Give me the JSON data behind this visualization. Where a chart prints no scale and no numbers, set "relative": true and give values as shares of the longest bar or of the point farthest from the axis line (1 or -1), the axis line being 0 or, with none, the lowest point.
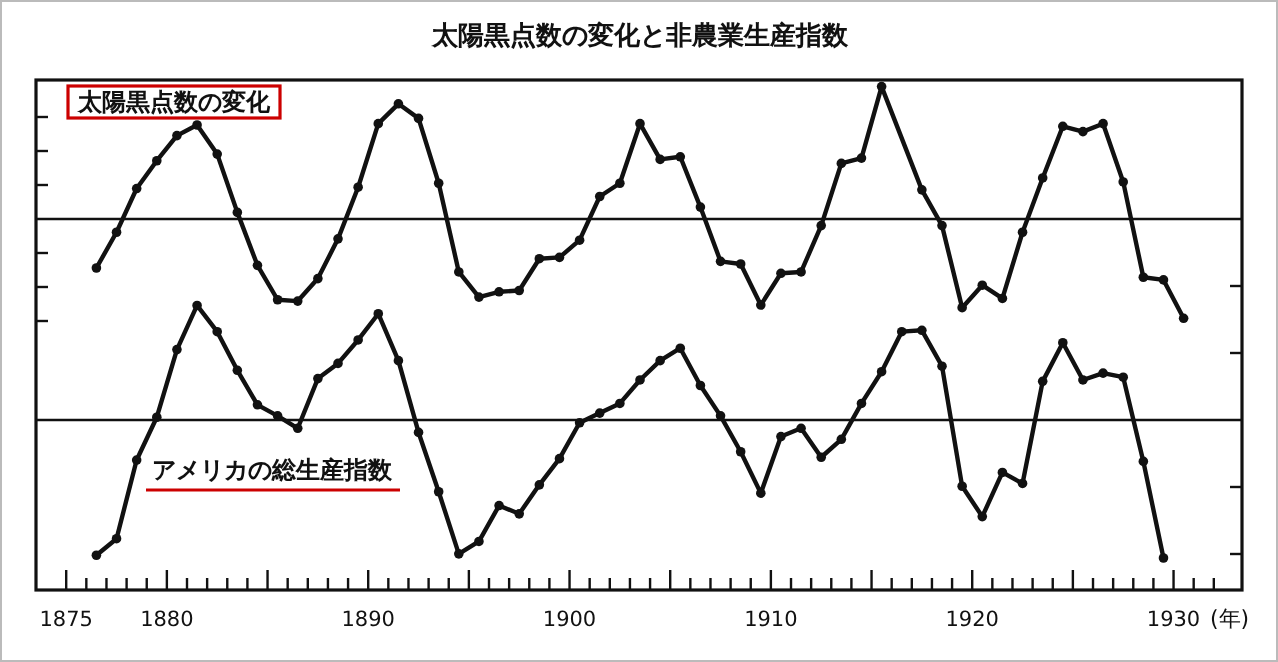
{
  "chart_data": [
    {
      "type": "line",
      "title": "太陽黒点数の変化と非農業生産指数",
      "relative": true,
      "marker": "circle",
      "line_style": "solid",
      "tick_labels": false,
      "xlim": [
        1873.5,
        1933.4
      ],
      "series": [
        {
          "name": "太陽黒点数の変化",
          "color": "#111111",
          "x": [
            1876.5,
            1877.5,
            1878.5,
            1879.5,
            1880.5,
            1881.5,
            1882.5,
            1883.5,
            1884.5,
            1885.5,
            1886.5,
            1887.5,
            1888.5,
            1889.5,
            1890.5,
            1891.5,
            1892.5,
            1893.5,
            1894.5,
            1895.5,
            1896.5,
            1897.5,
            1898.5,
            1899.5,
            1900.5,
            1901.5,
            1902.5,
            1903.5,
            1904.5,
            1905.5,
            1906.5,
            1907.5,
            1908.5,
            1909.5,
            1910.5,
            1911.5,
            1912.5,
            1913.5,
            1914.5,
            1915.5,
            1917.5,
            1918.5,
            1919.5,
            1920.5,
            1921.5,
            1922.5,
            1923.5,
            1924.5,
            1925.5,
            1926.5,
            1927.5,
            1928.5,
            1929.5,
            1930.5
          ],
          "values": [
            -0.37,
            -0.1,
            0.23,
            0.44,
            0.63,
            0.71,
            0.49,
            0.05,
            -0.35,
            -0.61,
            -0.62,
            -0.45,
            -0.15,
            0.24,
            0.72,
            0.87,
            0.76,
            0.27,
            -0.4,
            -0.59,
            -0.55,
            -0.54,
            -0.3,
            -0.29,
            -0.16,
            0.17,
            0.27,
            0.72,
            0.45,
            0.47,
            0.09,
            -0.32,
            -0.34,
            -0.65,
            -0.41,
            -0.4,
            -0.05,
            0.42,
            0.46,
            1,
            0.22,
            -0.05,
            -0.67,
            -0.5,
            -0.6,
            -0.1,
            0.31,
            0.7,
            0.66,
            0.72,
            0.28,
            -0.44,
            -0.46,
            -0.75
          ]
        }
      ]
    },
    {
      "type": "line",
      "relative": true,
      "marker": "circle",
      "line_style": "solid",
      "tick_labels": "x",
      "xlabel": "(年)",
      "xlim": [
        1873.5,
        1933.4
      ],
      "xticks": [
        1875,
        {
          "value": 1876,
          "label": null
        },
        {
          "value": 1877,
          "label": null
        },
        {
          "value": 1878,
          "label": null
        },
        {
          "value": 1879,
          "label": null
        },
        1880,
        {
          "value": 1881,
          "label": null
        },
        {
          "value": 1882,
          "label": null
        },
        {
          "value": 1883,
          "label": null
        },
        {
          "value": 1884,
          "label": null
        },
        {
          "value": 1885,
          "label": null
        },
        {
          "value": 1886,
          "label": null
        },
        {
          "value": 1887,
          "label": null
        },
        {
          "value": 1888,
          "label": null
        },
        {
          "value": 1889,
          "label": null
        },
        1890,
        {
          "value": 1891,
          "label": null
        },
        {
          "value": 1892,
          "label": null
        },
        {
          "value": 1893,
          "label": null
        },
        {
          "value": 1894,
          "label": null
        },
        {
          "value": 1895,
          "label": null
        },
        {
          "value": 1896,
          "label": null
        },
        {
          "value": 1897,
          "label": null
        },
        {
          "value": 1898,
          "label": null
        },
        {
          "value": 1899,
          "label": null
        },
        1900,
        {
          "value": 1901,
          "label": null
        },
        {
          "value": 1902,
          "label": null
        },
        {
          "value": 1903,
          "label": null
        },
        {
          "value": 1904,
          "label": null
        },
        {
          "value": 1905,
          "label": null
        },
        {
          "value": 1906,
          "label": null
        },
        {
          "value": 1907,
          "label": null
        },
        {
          "value": 1908,
          "label": null
        },
        {
          "value": 1909,
          "label": null
        },
        1910,
        {
          "value": 1911,
          "label": null
        },
        {
          "value": 1912,
          "label": null
        },
        {
          "value": 1913,
          "label": null
        },
        {
          "value": 1914,
          "label": null
        },
        {
          "value": 1915,
          "label": null
        },
        {
          "value": 1916,
          "label": null
        },
        {
          "value": 1917,
          "label": null
        },
        {
          "value": 1918,
          "label": null
        },
        {
          "value": 1919,
          "label": null
        },
        1920,
        {
          "value": 1921,
          "label": null
        },
        {
          "value": 1922,
          "label": null
        },
        {
          "value": 1923,
          "label": null
        },
        {
          "value": 1924,
          "label": null
        },
        {
          "value": 1925,
          "label": null
        },
        {
          "value": 1926,
          "label": null
        },
        {
          "value": 1927,
          "label": null
        },
        {
          "value": 1928,
          "label": null
        },
        {
          "value": 1929,
          "label": null
        },
        1930,
        {
          "value": 1931,
          "label": null
        },
        {
          "value": 1932,
          "label": null
        }
      ],
      "series": [
        {
          "name": "アメリカの総生産指数",
          "color": "#111111",
          "x": [
            1876.5,
            1877.5,
            1878.5,
            1879.5,
            1880.5,
            1881.5,
            1882.5,
            1883.5,
            1884.5,
            1885.5,
            1886.5,
            1887.5,
            1888.5,
            1889.5,
            1890.5,
            1891.5,
            1892.5,
            1893.5,
            1894.5,
            1895.5,
            1896.5,
            1897.5,
            1898.5,
            1899.5,
            1900.5,
            1901.5,
            1902.5,
            1903.5,
            1904.5,
            1905.5,
            1906.5,
            1907.5,
            1908.5,
            1909.5,
            1910.5,
            1911.5,
            1912.5,
            1913.5,
            1914.5,
            1915.5,
            1916.5,
            1917.5,
            1918.5,
            1919.5,
            1920.5,
            1921.5,
            1922.5,
            1923.5,
            1924.5,
            1925.5,
            1926.5,
            1927.5,
            1928.5,
            1929.5
          ],
          "values": [
            -0.98,
            -0.86,
            -0.29,
            0.02,
            0.51,
            0.83,
            0.64,
            0.36,
            0.11,
            0.03,
            -0.06,
            0.3,
            0.41,
            0.58,
            0.77,
            0.43,
            -0.09,
            -0.52,
            -0.97,
            -0.88,
            -0.62,
            -0.68,
            -0.47,
            -0.28,
            -0.02,
            0.05,
            0.12,
            0.29,
            0.43,
            0.52,
            0.25,
            0.03,
            -0.23,
            -0.53,
            -0.12,
            -0.06,
            -0.27,
            -0.14,
            0.12,
            0.35,
            0.64,
            0.65,
            0.39,
            -0.48,
            -0.7,
            -0.38,
            -0.46,
            0.28,
            0.56,
            0.29,
            0.34,
            0.31,
            -0.3,
            -1
          ]
        }
      ]
    }
  ]
}
